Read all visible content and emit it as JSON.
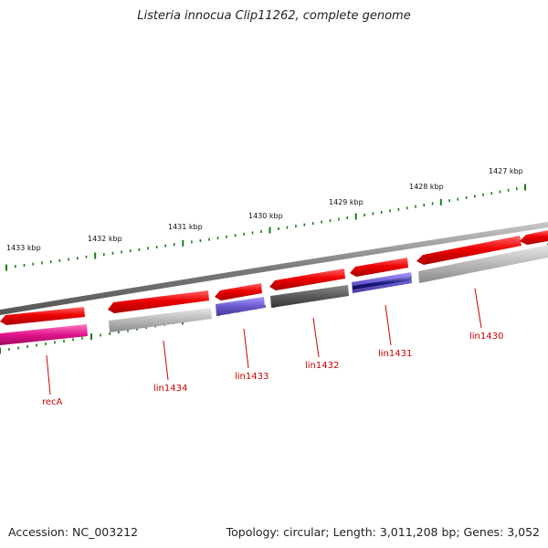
{
  "title": "Listeria innocua Clip11262, complete genome",
  "footer": {
    "accession": "Accession: NC_003212",
    "summary": "Topology: circular; Length: 3,011,208 bp; Genes: 3,052"
  },
  "kbp_labels": [
    "1433 kbp",
    "1432 kbp",
    "1431 kbp",
    "1430 kbp",
    "1429 kbp",
    "1428 kbp",
    "1427 kbp"
  ],
  "gene_labels": [
    "recA",
    "lin1434",
    "lin1433",
    "lin1432",
    "lin1431",
    "lin1430"
  ],
  "colors": {
    "forward_strand": "#ee0000",
    "magenta": "#e0148c",
    "grey": "#b8b8b8",
    "dark_grey": "#5a5a5a",
    "purple": "#6a5acd",
    "navy": "#1a1a80",
    "tick": "#1a7a1a",
    "label": "#cc0000"
  }
}
